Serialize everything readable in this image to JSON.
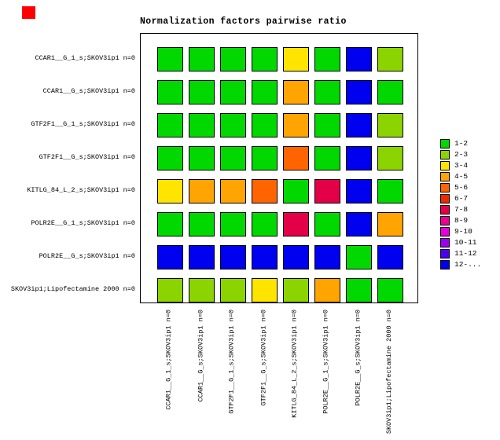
{
  "title": "Normalization factors pairwise ratio",
  "red_marker": {
    "color": "#ff0000"
  },
  "chart_data": {
    "type": "heatmap",
    "title": "Normalization factors pairwise ratio",
    "rows": [
      "CCAR1__G_1_s;SKOV3ip1 n=0",
      "CCAR1__G_s;SKOV3ip1 n=0",
      "GTF2F1__G_1_s;SKOV3ip1 n=0",
      "GTF2F1__G_s;SKOV3ip1 n=0",
      "KITLG_84_L_2_s;SKOV3ip1 n=0",
      "POLR2E__G_1_s;SKOV3ip1 n=0",
      "POLR2E__G_s;SKOV3ip1 n=0",
      "SKOV3ip1;Lipofectamine 2000 n=0"
    ],
    "columns": [
      "CCAR1__G_1_s;SKOV3ip1 n=0",
      "CCAR1__G_s;SKOV3ip1 n=0",
      "GTF2F1__G_1_s;SKOV3ip1 n=0",
      "GTF2F1__G_s;SKOV3ip1 n=0",
      "KITLG_84_L_2_s;SKOV3ip1 n=0",
      "POLR2E__G_1_s;SKOV3ip1 n=0",
      "POLR2E__G_s;SKOV3ip1 n=0",
      "SKOV3ip1;Lipofectamine 2000 n=0"
    ],
    "legend_position": "right",
    "legend": [
      {
        "label": "1-2",
        "color": "#00d800"
      },
      {
        "label": "2-3",
        "color": "#8cd400"
      },
      {
        "label": "3-4",
        "color": "#ffe400"
      },
      {
        "label": "4-5",
        "color": "#ffa400"
      },
      {
        "label": "5-6",
        "color": "#ff6400"
      },
      {
        "label": "6-7",
        "color": "#f02800"
      },
      {
        "label": "7-8",
        "color": "#e40048"
      },
      {
        "label": "8-9",
        "color": "#ec0090"
      },
      {
        "label": "9-10",
        "color": "#e400d8"
      },
      {
        "label": "10-11",
        "color": "#9c00f0"
      },
      {
        "label": "11-12",
        "color": "#4c00f0"
      },
      {
        "label": "12-...",
        "color": "#0000f0"
      }
    ],
    "cells": [
      [
        "1-2",
        "1-2",
        "1-2",
        "1-2",
        "3-4",
        "1-2",
        "12-...",
        "2-3"
      ],
      [
        "1-2",
        "1-2",
        "1-2",
        "1-2",
        "4-5",
        "1-2",
        "12-...",
        "1-2"
      ],
      [
        "1-2",
        "1-2",
        "1-2",
        "1-2",
        "4-5",
        "1-2",
        "12-...",
        "2-3"
      ],
      [
        "1-2",
        "1-2",
        "1-2",
        "1-2",
        "5-6",
        "1-2",
        "12-...",
        "2-3"
      ],
      [
        "3-4",
        "4-5",
        "4-5",
        "5-6",
        "1-2",
        "7-8",
        "12-...",
        "1-2"
      ],
      [
        "1-2",
        "1-2",
        "1-2",
        "1-2",
        "7-8",
        "1-2",
        "12-...",
        "4-5"
      ],
      [
        "12-...",
        "12-...",
        "12-...",
        "12-...",
        "12-...",
        "12-...",
        "1-2",
        "12-..."
      ],
      [
        "2-3",
        "2-3",
        "2-3",
        "3-4",
        "2-3",
        "4-5",
        "1-2",
        "1-2"
      ]
    ]
  }
}
